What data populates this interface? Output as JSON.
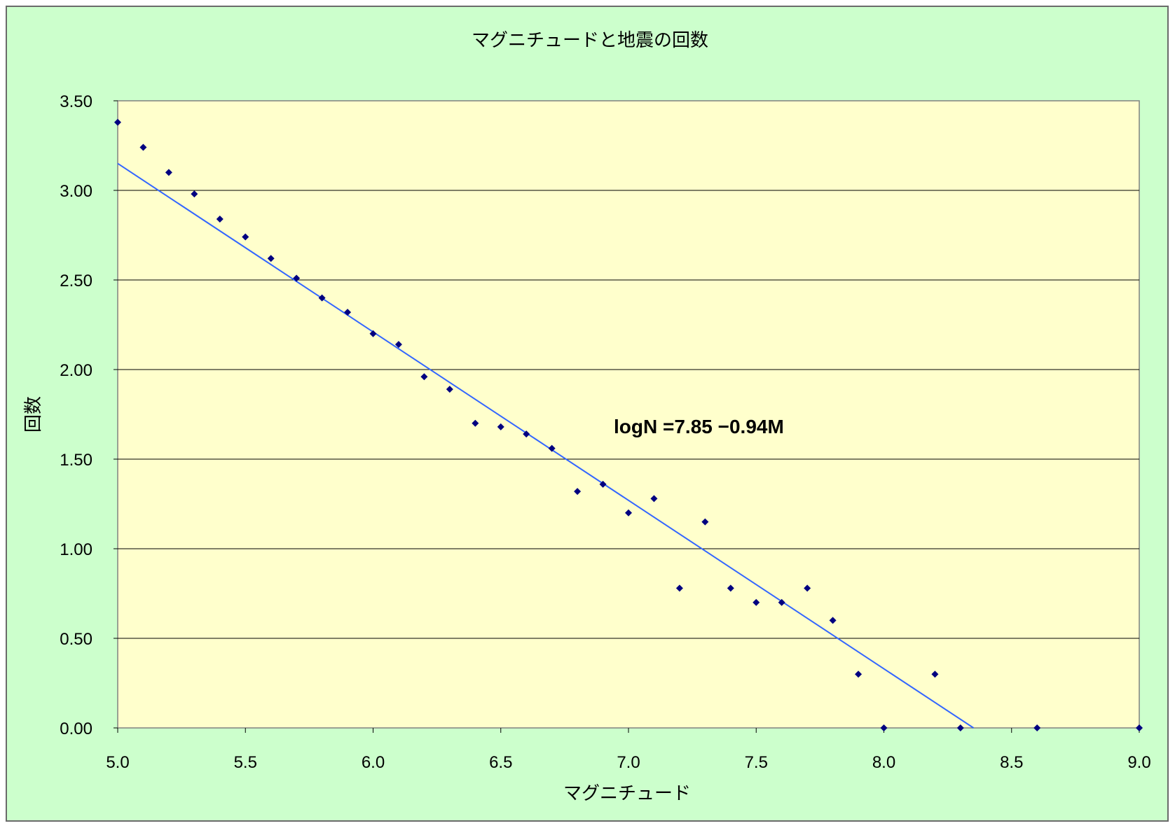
{
  "chart_data": {
    "type": "scatter",
    "title": "マグニチュードと地震の回数",
    "xlabel": "マグニチュード",
    "ylabel": "回数",
    "xlim": [
      5.0,
      9.0
    ],
    "ylim": [
      0.0,
      3.5
    ],
    "x_ticks": [
      "5.0",
      "5.5",
      "6.0",
      "6.5",
      "7.0",
      "7.5",
      "8.0",
      "8.5",
      "9.0"
    ],
    "y_ticks": [
      "0.00",
      "0.50",
      "1.00",
      "1.50",
      "2.00",
      "2.50",
      "3.00",
      "3.50"
    ],
    "grid": "horizontal",
    "points": {
      "x": [
        5.0,
        5.1,
        5.2,
        5.3,
        5.4,
        5.5,
        5.6,
        5.7,
        5.8,
        5.9,
        6.0,
        6.1,
        6.2,
        6.3,
        6.4,
        6.5,
        6.6,
        6.7,
        6.8,
        6.9,
        7.0,
        7.1,
        7.2,
        7.3,
        7.4,
        7.5,
        7.6,
        7.7,
        7.8,
        7.9,
        8.0,
        8.2,
        8.3,
        8.6,
        9.0
      ],
      "y": [
        3.38,
        3.24,
        3.1,
        2.98,
        2.84,
        2.74,
        2.62,
        2.51,
        2.4,
        2.32,
        2.2,
        2.14,
        1.96,
        1.89,
        1.7,
        1.68,
        1.64,
        1.56,
        1.32,
        1.36,
        1.2,
        1.28,
        0.78,
        1.15,
        0.78,
        0.7,
        0.7,
        0.78,
        0.6,
        0.3,
        0.0,
        0.3,
        0.0,
        0.0,
        0.0
      ]
    },
    "trendline": {
      "intercept": 7.85,
      "slope": -0.94,
      "label": "logN =7.85 −0.94M"
    },
    "colors": {
      "background": "#ccffcc",
      "plot_area": "#ffffcc",
      "marker": "#000080",
      "trendline": "#3366ff",
      "grid": "#000000"
    }
  }
}
